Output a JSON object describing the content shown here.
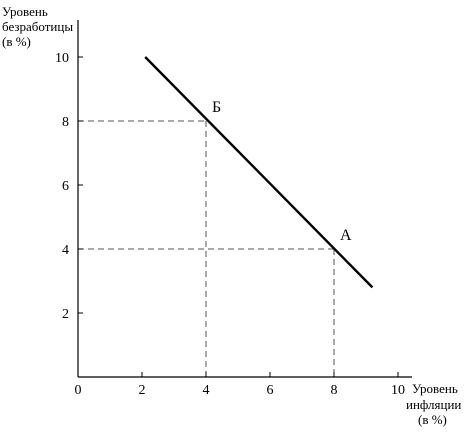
{
  "chart_data": {
    "type": "line",
    "title": "",
    "ylabel_lines": [
      "Уровень",
      "безработицы",
      "(в %)"
    ],
    "xlabel_lines": [
      "Уровень",
      "инфляции",
      "(в %)"
    ],
    "xlim": [
      0,
      10
    ],
    "ylim": [
      0,
      10
    ],
    "x_ticks": [
      0,
      2,
      4,
      6,
      8,
      10
    ],
    "y_ticks": [
      2,
      4,
      6,
      8,
      10
    ],
    "grid": false,
    "series": [
      {
        "points": [
          {
            "x": 2.1,
            "y": 10
          },
          {
            "x": 9.2,
            "y": 2.8
          }
        ]
      }
    ],
    "points": [
      {
        "label": "Б",
        "x": 4,
        "y": 8
      },
      {
        "label": "А",
        "x": 8,
        "y": 4
      }
    ],
    "reference_lines": "dashed",
    "colors": {
      "line": "#000000",
      "axes": "#000000",
      "dashed": "#555555"
    }
  }
}
